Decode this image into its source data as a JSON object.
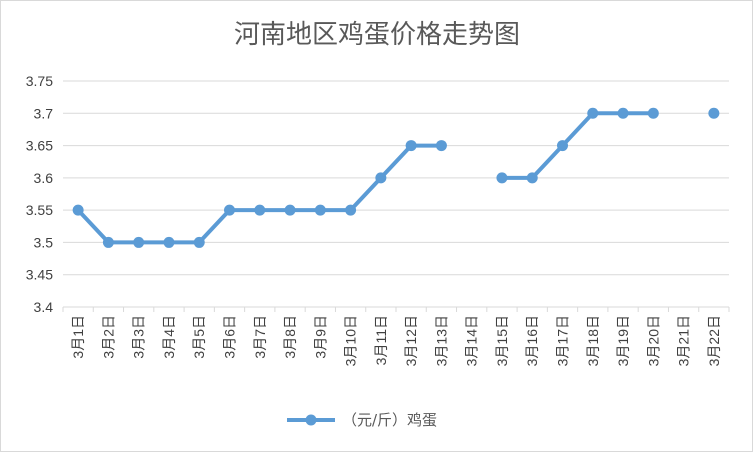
{
  "chart_data": {
    "type": "line",
    "title": "河南地区鸡蛋价格走势图",
    "xlabel": "",
    "ylabel": "",
    "categories": [
      "3月1日",
      "3月2日",
      "3月3日",
      "3月4日",
      "3月5日",
      "3月6日",
      "3月7日",
      "3月8日",
      "3月9日",
      "3月10日",
      "3月11日",
      "3月12日",
      "3月13日",
      "3月14日",
      "3月15日",
      "3月16日",
      "3月17日",
      "3月18日",
      "3月19日",
      "3月20日",
      "3月21日",
      "3月22日"
    ],
    "series": [
      {
        "name": "（元/斤）鸡蛋",
        "values": [
          3.55,
          3.5,
          3.5,
          3.5,
          3.5,
          3.55,
          3.55,
          3.55,
          3.55,
          3.55,
          3.6,
          3.65,
          3.65,
          null,
          3.6,
          3.6,
          3.65,
          3.7,
          3.7,
          3.7,
          null,
          3.7
        ],
        "color": "#5b9bd5"
      }
    ],
    "ylim": [
      3.4,
      3.75
    ],
    "yticks": [
      "3.4",
      "3.45",
      "3.5",
      "3.55",
      "3.6",
      "3.65",
      "3.7",
      "3.75"
    ],
    "grid": true,
    "legend": "bottom"
  }
}
